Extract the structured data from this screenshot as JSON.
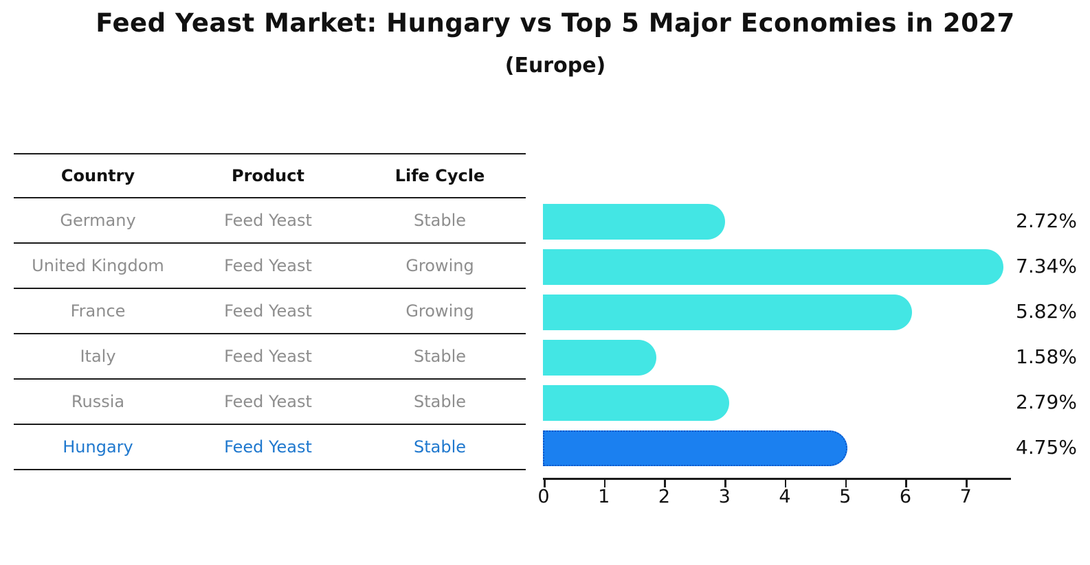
{
  "title": "Feed Yeast Market: Hungary vs Top 5 Major Economies in 2027",
  "subtitle": "(Europe)",
  "table": {
    "headers": [
      "Country",
      "Product",
      "Life Cycle"
    ],
    "rows": [
      {
        "country": "Germany",
        "product": "Feed Yeast",
        "life_cycle": "Stable"
      },
      {
        "country": "United Kingdom",
        "product": "Feed Yeast",
        "life_cycle": "Growing"
      },
      {
        "country": "France",
        "product": "Feed Yeast",
        "life_cycle": "Growing"
      },
      {
        "country": "Italy",
        "product": "Feed Yeast",
        "life_cycle": "Stable"
      },
      {
        "country": "Russia",
        "product": "Feed Yeast",
        "life_cycle": "Stable"
      },
      {
        "country": "Hungary",
        "product": "Feed Yeast",
        "life_cycle": "Stable"
      }
    ],
    "highlight_row": "Hungary"
  },
  "chart_data": {
    "type": "bar",
    "orientation": "horizontal",
    "title": "Feed Yeast Market: Hungary vs Top 5 Major Economies in 2027",
    "subtitle": "(Europe)",
    "categories": [
      "Germany",
      "United Kingdom",
      "France",
      "Italy",
      "Russia",
      "Hungary"
    ],
    "values": [
      2.72,
      7.34,
      5.82,
      1.58,
      2.79,
      4.75
    ],
    "value_labels": [
      "2.72%",
      "7.34%",
      "5.82%",
      "1.58%",
      "2.79%",
      "4.75%"
    ],
    "x_ticks": [
      0,
      1,
      2,
      3,
      4,
      5,
      6,
      7
    ],
    "xlim": [
      0,
      7.75
    ],
    "grid": false,
    "legend": "none",
    "highlight_index": 5,
    "colors": {
      "bar": "#43E6E4",
      "highlight_bar": "#1B80F0",
      "highlight_bar_border": "#0C55C8",
      "highlight_text": "#1F78CE",
      "row_text": "#8E8E8E",
      "header_text": "#111111",
      "axis": "#1A1A1A",
      "value_label_text": "#111111"
    }
  }
}
